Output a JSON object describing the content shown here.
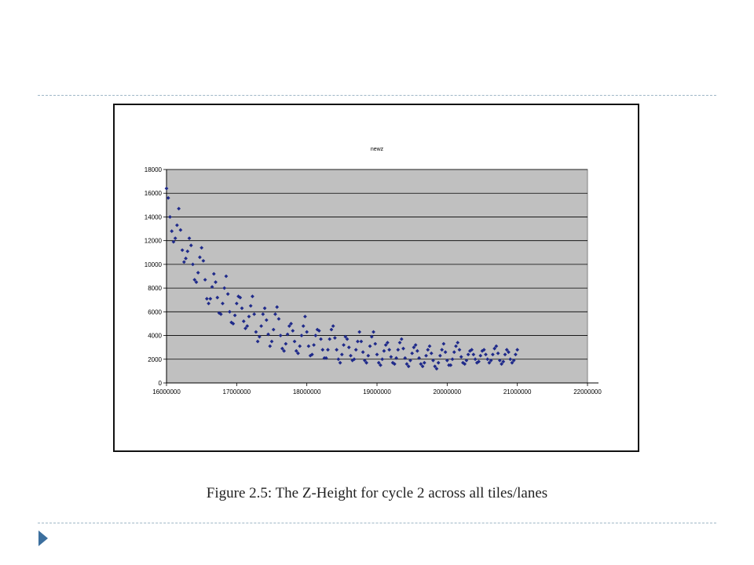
{
  "figure": {
    "caption": "Figure 2.5:  The Z-Height for cycle 2 across all tiles/lanes"
  },
  "colors": {
    "plot_background": "#c0c0c0",
    "series": "#1f2a8a",
    "grid": "#000000",
    "rule": "#9fb7c6",
    "nav_arrow": "#3c6f9e"
  },
  "icons": {
    "nav": "triangle-right-icon"
  },
  "chart_data": {
    "type": "scatter",
    "title": "newz",
    "xlabel": "",
    "ylabel": "",
    "xlim": [
      16000000,
      22000000
    ],
    "ylim": [
      0,
      18000
    ],
    "x_ticks": [
      16000000,
      17000000,
      18000000,
      19000000,
      20000000,
      21000000,
      22000000
    ],
    "y_ticks": [
      0,
      2000,
      4000,
      6000,
      8000,
      10000,
      12000,
      14000,
      16000,
      18000
    ],
    "grid": "horizontal",
    "legend": "none",
    "series": [
      {
        "points": [
          [
            16000000,
            16400
          ],
          [
            16025000,
            15600
          ],
          [
            16050000,
            14000
          ],
          [
            16075000,
            12800
          ],
          [
            16100000,
            11900
          ],
          [
            16125000,
            12200
          ],
          [
            16150000,
            13300
          ],
          [
            16175000,
            14700
          ],
          [
            16200000,
            12900
          ],
          [
            16225000,
            11200
          ],
          [
            16250000,
            10200
          ],
          [
            16275000,
            10500
          ],
          [
            16300000,
            11100
          ],
          [
            16325000,
            12200
          ],
          [
            16350000,
            11600
          ],
          [
            16375000,
            10000
          ],
          [
            16400000,
            8700
          ],
          [
            16425000,
            8500
          ],
          [
            16450000,
            9300
          ],
          [
            16475000,
            10600
          ],
          [
            16500000,
            11400
          ],
          [
            16525000,
            10300
          ],
          [
            16550000,
            8700
          ],
          [
            16575000,
            7100
          ],
          [
            16600000,
            6700
          ],
          [
            16625000,
            7100
          ],
          [
            16650000,
            8100
          ],
          [
            16675000,
            9200
          ],
          [
            16700000,
            8500
          ],
          [
            16725000,
            7200
          ],
          [
            16750000,
            5900
          ],
          [
            16775000,
            5800
          ],
          [
            16800000,
            6700
          ],
          [
            16825000,
            8000
          ],
          [
            16850000,
            9000
          ],
          [
            16875000,
            7500
          ],
          [
            16900000,
            6000
          ],
          [
            16925000,
            5100
          ],
          [
            16950000,
            5000
          ],
          [
            16975000,
            5700
          ],
          [
            17000000,
            6700
          ],
          [
            17025000,
            7300
          ],
          [
            17050000,
            7200
          ],
          [
            17075000,
            6300
          ],
          [
            17100000,
            5200
          ],
          [
            17125000,
            4600
          ],
          [
            17150000,
            4800
          ],
          [
            17175000,
            5600
          ],
          [
            17200000,
            6500
          ],
          [
            17225000,
            7300
          ],
          [
            17250000,
            5800
          ],
          [
            17275000,
            4300
          ],
          [
            17300000,
            3500
          ],
          [
            17325000,
            3900
          ],
          [
            17350000,
            4800
          ],
          [
            17375000,
            5800
          ],
          [
            17400000,
            6300
          ],
          [
            17425000,
            5300
          ],
          [
            17450000,
            4100
          ],
          [
            17475000,
            3100
          ],
          [
            17500000,
            3500
          ],
          [
            17525000,
            4500
          ],
          [
            17550000,
            5800
          ],
          [
            17575000,
            6400
          ],
          [
            17600000,
            5400
          ],
          [
            17625000,
            4000
          ],
          [
            17650000,
            2900
          ],
          [
            17675000,
            2700
          ],
          [
            17700000,
            3300
          ],
          [
            17725000,
            4100
          ],
          [
            17750000,
            4800
          ],
          [
            17775000,
            5000
          ],
          [
            17800000,
            4400
          ],
          [
            17825000,
            3500
          ],
          [
            17850000,
            2700
          ],
          [
            17875000,
            2500
          ],
          [
            17900000,
            3100
          ],
          [
            17925000,
            4000
          ],
          [
            17950000,
            4800
          ],
          [
            17975000,
            5600
          ],
          [
            18000000,
            4300
          ],
          [
            18025000,
            3100
          ],
          [
            18050000,
            2300
          ],
          [
            18075000,
            2400
          ],
          [
            18100000,
            3200
          ],
          [
            18125000,
            4000
          ],
          [
            18150000,
            4500
          ],
          [
            18175000,
            4400
          ],
          [
            18200000,
            3700
          ],
          [
            18225000,
            2800
          ],
          [
            18250000,
            2100
          ],
          [
            18275000,
            2100
          ],
          [
            18300000,
            2800
          ],
          [
            18325000,
            3700
          ],
          [
            18350000,
            4500
          ],
          [
            18375000,
            4800
          ],
          [
            18400000,
            3800
          ],
          [
            18425000,
            2800
          ],
          [
            18450000,
            2000
          ],
          [
            18475000,
            1700
          ],
          [
            18500000,
            2400
          ],
          [
            18525000,
            3200
          ],
          [
            18550000,
            3900
          ],
          [
            18575000,
            3700
          ],
          [
            18600000,
            3000
          ],
          [
            18625000,
            2300
          ],
          [
            18650000,
            1900
          ],
          [
            18675000,
            2000
          ],
          [
            18700000,
            2800
          ],
          [
            18725000,
            3500
          ],
          [
            18750000,
            4300
          ],
          [
            18775000,
            3500
          ],
          [
            18800000,
            2600
          ],
          [
            18825000,
            1900
          ],
          [
            18850000,
            1700
          ],
          [
            18875000,
            2300
          ],
          [
            18900000,
            3100
          ],
          [
            18925000,
            3900
          ],
          [
            18950000,
            4300
          ],
          [
            18975000,
            3300
          ],
          [
            19000000,
            2400
          ],
          [
            19025000,
            1700
          ],
          [
            19050000,
            1500
          ],
          [
            19075000,
            2000
          ],
          [
            19100000,
            2700
          ],
          [
            19125000,
            3200
          ],
          [
            19150000,
            3400
          ],
          [
            19175000,
            2800
          ],
          [
            19200000,
            2200
          ],
          [
            19225000,
            1700
          ],
          [
            19250000,
            1600
          ],
          [
            19275000,
            2100
          ],
          [
            19300000,
            2800
          ],
          [
            19325000,
            3400
          ],
          [
            19350000,
            3700
          ],
          [
            19375000,
            2900
          ],
          [
            19400000,
            2100
          ],
          [
            19425000,
            1600
          ],
          [
            19450000,
            1400
          ],
          [
            19475000,
            1900
          ],
          [
            19500000,
            2500
          ],
          [
            19525000,
            3000
          ],
          [
            19550000,
            3200
          ],
          [
            19575000,
            2700
          ],
          [
            19600000,
            2100
          ],
          [
            19625000,
            1600
          ],
          [
            19650000,
            1400
          ],
          [
            19675000,
            1700
          ],
          [
            19700000,
            2300
          ],
          [
            19725000,
            2800
          ],
          [
            19750000,
            3100
          ],
          [
            19775000,
            2500
          ],
          [
            19800000,
            1900
          ],
          [
            19825000,
            1400
          ],
          [
            19850000,
            1200
          ],
          [
            19875000,
            1700
          ],
          [
            19900000,
            2300
          ],
          [
            19925000,
            2800
          ],
          [
            19950000,
            3300
          ],
          [
            19975000,
            2600
          ],
          [
            20000000,
            1900
          ],
          [
            20025000,
            1500
          ],
          [
            20050000,
            1500
          ],
          [
            20075000,
            2000
          ],
          [
            20100000,
            2600
          ],
          [
            20125000,
            3100
          ],
          [
            20150000,
            3400
          ],
          [
            20175000,
            2800
          ],
          [
            20200000,
            2200
          ],
          [
            20225000,
            1700
          ],
          [
            20250000,
            1600
          ],
          [
            20275000,
            1900
          ],
          [
            20300000,
            2400
          ],
          [
            20325000,
            2700
          ],
          [
            20350000,
            2800
          ],
          [
            20375000,
            2400
          ],
          [
            20400000,
            2000
          ],
          [
            20425000,
            1700
          ],
          [
            20450000,
            1800
          ],
          [
            20475000,
            2300
          ],
          [
            20500000,
            2700
          ],
          [
            20525000,
            2800
          ],
          [
            20550000,
            2400
          ],
          [
            20575000,
            2000
          ],
          [
            20600000,
            1700
          ],
          [
            20625000,
            1900
          ],
          [
            20650000,
            2400
          ],
          [
            20675000,
            2900
          ],
          [
            20700000,
            3100
          ],
          [
            20725000,
            2500
          ],
          [
            20750000,
            1900
          ],
          [
            20775000,
            1600
          ],
          [
            20800000,
            1800
          ],
          [
            20825000,
            2400
          ],
          [
            20850000,
            2800
          ],
          [
            20875000,
            2600
          ],
          [
            20900000,
            2000
          ],
          [
            20925000,
            1700
          ],
          [
            20950000,
            1900
          ],
          [
            20975000,
            2400
          ],
          [
            21000000,
            2800
          ]
        ]
      }
    ]
  }
}
